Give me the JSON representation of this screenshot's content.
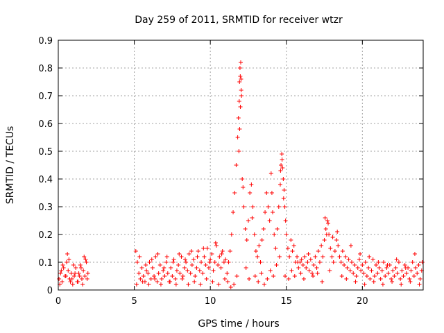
{
  "chart_data": {
    "type": "scatter",
    "title": "Day 259 of 2011, SRMTID for receiver wtzr",
    "xlabel": "GPS time / hours",
    "ylabel": "SRMTID / TECUs",
    "xlim": [
      0,
      24
    ],
    "ylim": [
      0,
      0.9
    ],
    "xticks": [
      "0",
      "5",
      "10",
      "15",
      "20"
    ],
    "yticks": [
      "0",
      "0.1",
      "0.2",
      "0.3",
      "0.4",
      "0.5",
      "0.6",
      "0.7",
      "0.8",
      "0.9"
    ],
    "grid": true,
    "marker": "+",
    "color": "#ff0000",
    "series": [
      {
        "name": "SRMTID",
        "x": [
          0.05,
          0.15,
          0.25,
          0.35,
          0.45,
          0.55,
          0.65,
          0.75,
          0.85,
          0.95,
          1.05,
          1.15,
          1.25,
          1.35,
          1.45,
          1.55,
          1.65,
          1.75,
          1.85,
          1.95,
          0.1,
          0.3,
          0.5,
          0.7,
          0.9,
          1.1,
          1.3,
          1.5,
          1.7,
          1.9,
          0.2,
          0.6,
          0.8,
          1.0,
          1.4,
          1.6,
          1.8,
          5.1,
          5.2,
          5.3,
          5.4,
          5.5,
          5.6,
          5.7,
          5.8,
          5.9,
          6.0,
          6.1,
          6.2,
          6.3,
          6.4,
          6.5,
          6.6,
          6.7,
          6.8,
          6.9,
          7.0,
          7.1,
          7.2,
          7.3,
          7.4,
          7.5,
          7.6,
          7.7,
          7.8,
          7.9,
          8.0,
          8.1,
          8.2,
          8.3,
          8.4,
          8.5,
          8.6,
          8.7,
          8.8,
          8.9,
          9.0,
          9.1,
          9.2,
          9.3,
          9.4,
          9.5,
          9.6,
          9.7,
          9.8,
          9.9,
          10.0,
          10.1,
          10.2,
          10.3,
          10.4,
          10.5,
          10.6,
          10.7,
          10.8,
          10.9,
          11.0,
          5.15,
          5.35,
          5.55,
          5.75,
          5.95,
          6.15,
          6.35,
          6.55,
          6.75,
          6.95,
          7.15,
          7.35,
          7.55,
          7.75,
          7.95,
          8.15,
          8.35,
          8.55,
          8.75,
          8.95,
          9.15,
          9.35,
          9.55,
          9.75,
          9.95,
          10.15,
          10.35,
          10.55,
          10.75,
          10.95,
          11.1,
          11.2,
          11.3,
          11.4,
          11.5,
          11.6,
          11.7,
          11.8,
          11.85,
          11.9,
          11.92,
          11.95,
          11.97,
          12.0,
          12.02,
          12.05,
          12.1,
          12.2,
          12.3,
          12.4,
          12.5,
          12.6,
          12.7,
          12.8,
          12.9,
          13.0,
          13.1,
          13.2,
          13.3,
          13.4,
          13.5,
          13.6,
          13.7,
          13.8,
          13.9,
          14.0,
          14.05,
          14.1,
          14.2,
          14.3,
          14.4,
          14.5,
          14.6,
          14.65,
          14.7,
          14.75,
          14.8,
          14.85,
          14.9,
          14.95,
          15.0,
          15.1,
          15.2,
          15.3,
          15.4,
          15.5,
          15.6,
          15.7,
          15.8,
          15.9,
          16.0,
          11.15,
          11.35,
          11.55,
          11.75,
          11.88,
          11.93,
          11.98,
          12.03,
          12.15,
          12.35,
          12.55,
          12.75,
          12.95,
          13.15,
          13.35,
          13.55,
          13.75,
          13.95,
          14.15,
          14.35,
          14.55,
          14.62,
          14.72,
          14.82,
          14.92,
          15.15,
          15.35,
          15.55,
          15.75,
          15.95,
          16.1,
          16.2,
          16.3,
          16.4,
          16.5,
          16.6,
          16.7,
          16.8,
          16.9,
          17.0,
          17.1,
          17.2,
          17.3,
          17.4,
          17.5,
          17.6,
          17.7,
          17.8,
          17.9,
          18.0,
          18.1,
          18.2,
          18.3,
          18.4,
          18.5,
          18.6,
          18.7,
          18.8,
          18.9,
          19.0,
          19.1,
          19.2,
          19.3,
          19.4,
          19.5,
          19.6,
          19.7,
          19.8,
          19.9,
          20.0,
          16.15,
          16.45,
          16.75,
          17.05,
          17.35,
          17.55,
          17.65,
          17.75,
          17.85,
          18.05,
          18.35,
          18.65,
          18.95,
          19.25,
          19.55,
          19.85,
          20.1,
          20.2,
          20.3,
          20.4,
          20.5,
          20.6,
          20.7,
          20.8,
          20.9,
          21.0,
          21.1,
          21.2,
          21.3,
          21.4,
          21.5,
          21.6,
          21.7,
          21.8,
          21.9,
          22.0,
          22.1,
          22.2,
          22.3,
          22.4,
          22.5,
          22.6,
          22.7,
          22.8,
          22.9,
          23.0,
          23.1,
          23.2,
          23.3,
          23.4,
          23.5,
          23.6,
          23.7,
          23.8,
          23.9,
          20.15,
          20.45,
          20.75,
          21.05,
          21.35,
          21.65,
          21.95,
          22.25,
          22.55,
          22.85,
          23.15,
          23.45,
          23.75,
          23.95
        ],
        "y": [
          0.04,
          0.06,
          0.03,
          0.08,
          0.05,
          0.1,
          0.07,
          0.04,
          0.06,
          0.02,
          0.05,
          0.08,
          0.03,
          0.06,
          0.09,
          0.04,
          0.07,
          0.05,
          0.1,
          0.06,
          0.02,
          0.09,
          0.05,
          0.11,
          0.04,
          0.06,
          0.03,
          0.08,
          0.12,
          0.04,
          0.07,
          0.13,
          0.03,
          0.09,
          0.05,
          0.02,
          0.11,
          0.14,
          0.1,
          0.06,
          0.04,
          0.08,
          0.05,
          0.03,
          0.07,
          0.06,
          0.1,
          0.04,
          0.08,
          0.05,
          0.12,
          0.03,
          0.06,
          0.09,
          0.04,
          0.07,
          0.05,
          0.1,
          0.06,
          0.03,
          0.08,
          0.05,
          0.11,
          0.04,
          0.07,
          0.09,
          0.06,
          0.12,
          0.05,
          0.08,
          0.1,
          0.07,
          0.13,
          0.06,
          0.09,
          0.11,
          0.05,
          0.08,
          0.14,
          0.07,
          0.1,
          0.06,
          0.12,
          0.09,
          0.15,
          0.08,
          0.11,
          0.13,
          0.07,
          0.1,
          0.16,
          0.09,
          0.12,
          0.08,
          0.14,
          0.1,
          0.11,
          0.02,
          0.12,
          0.03,
          0.09,
          0.02,
          0.11,
          0.04,
          0.13,
          0.02,
          0.08,
          0.12,
          0.03,
          0.1,
          0.02,
          0.13,
          0.04,
          0.11,
          0.02,
          0.14,
          0.03,
          0.12,
          0.02,
          0.15,
          0.04,
          0.1,
          0.03,
          0.17,
          0.02,
          0.13,
          0.04,
          0.06,
          0.1,
          0.14,
          0.2,
          0.28,
          0.35,
          0.45,
          0.55,
          0.62,
          0.68,
          0.75,
          0.8,
          0.77,
          0.82,
          0.76,
          0.7,
          0.4,
          0.3,
          0.22,
          0.18,
          0.25,
          0.35,
          0.38,
          0.3,
          0.2,
          0.14,
          0.12,
          0.16,
          0.1,
          0.18,
          0.22,
          0.28,
          0.35,
          0.3,
          0.25,
          0.42,
          0.35,
          0.28,
          0.2,
          0.15,
          0.22,
          0.3,
          0.38,
          0.45,
          0.49,
          0.44,
          0.4,
          0.36,
          0.3,
          0.25,
          0.2,
          0.15,
          0.12,
          0.18,
          0.14,
          0.16,
          0.1,
          0.12,
          0.08,
          0.1,
          0.11,
          0.03,
          0.01,
          0.02,
          0.05,
          0.5,
          0.58,
          0.66,
          0.72,
          0.37,
          0.08,
          0.04,
          0.26,
          0.05,
          0.03,
          0.06,
          0.02,
          0.04,
          0.07,
          0.05,
          0.09,
          0.12,
          0.43,
          0.47,
          0.33,
          0.05,
          0.04,
          0.07,
          0.05,
          0.1,
          0.06,
          0.09,
          0.12,
          0.08,
          0.1,
          0.07,
          0.11,
          0.06,
          0.09,
          0.12,
          0.08,
          0.14,
          0.1,
          0.16,
          0.12,
          0.18,
          0.22,
          0.25,
          0.2,
          0.15,
          0.12,
          0.1,
          0.14,
          0.18,
          0.16,
          0.12,
          0.1,
          0.14,
          0.09,
          0.12,
          0.08,
          0.11,
          0.07,
          0.1,
          0.06,
          0.09,
          0.05,
          0.08,
          0.11,
          0.07,
          0.09,
          0.04,
          0.13,
          0.05,
          0.06,
          0.03,
          0.26,
          0.2,
          0.24,
          0.07,
          0.19,
          0.21,
          0.05,
          0.04,
          0.16,
          0.03,
          0.13,
          0.06,
          0.1,
          0.05,
          0.08,
          0.04,
          0.07,
          0.11,
          0.05,
          0.09,
          0.06,
          0.08,
          0.04,
          0.07,
          0.1,
          0.05,
          0.08,
          0.06,
          0.09,
          0.04,
          0.07,
          0.05,
          0.08,
          0.06,
          0.1,
          0.04,
          0.07,
          0.05,
          0.09,
          0.06,
          0.08,
          0.04,
          0.07,
          0.1,
          0.05,
          0.08,
          0.06,
          0.09,
          0.04,
          0.07,
          0.02,
          0.12,
          0.03,
          0.1,
          0.02,
          0.09,
          0.03,
          0.11,
          0.02,
          0.08,
          0.03,
          0.13,
          0.02,
          0.1
        ]
      }
    ]
  }
}
